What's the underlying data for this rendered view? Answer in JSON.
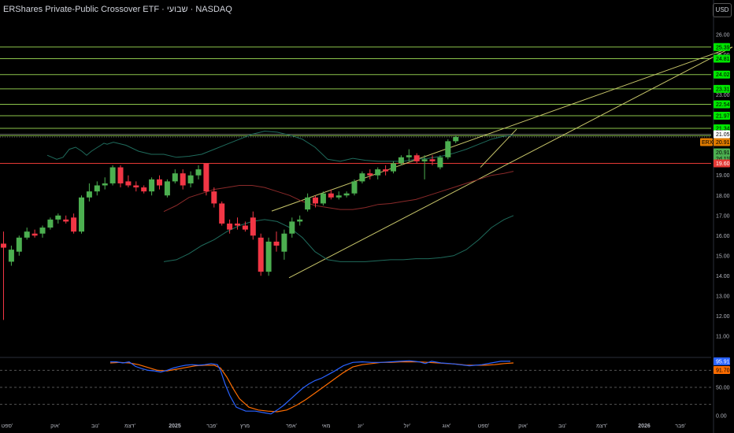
{
  "header": {
    "title": "ERShares Private-Public Crossover ETF · שבועי · NASDAQ",
    "currency_button": "USD"
  },
  "colors": {
    "up": "#4caf50",
    "down": "#f23645",
    "level_line": "#8bc34a",
    "trend_line": "#c8c66a",
    "bb_outer": "#1f6b5c",
    "bb_mid": "#8b2a2a",
    "resistance": "#e53935",
    "stoch_k": "#2962ff",
    "stoch_d": "#ff6d00"
  },
  "chart_data": [
    {
      "type": "candlestick",
      "ylim": [
        10.6,
        26.4
      ],
      "y_ticks": [
        "26.00",
        "25.00",
        "24.00",
        "23.00",
        "22.00",
        "21.00",
        "20.00",
        "19.00",
        "18.00",
        "17.00",
        "16.00",
        "15.00",
        "14.00",
        "13.00",
        "12.00",
        "11.00"
      ],
      "x_ticks": [
        "ספט'",
        "אוק'",
        "נוב'",
        "דצמ'",
        "2025",
        "פבר'",
        "מרץ",
        "אפר'",
        "מאי",
        "יונ'",
        "יול'",
        "אוג'",
        "ספט'",
        "אוק'",
        "נוב'",
        "דצמ'",
        "2026",
        "פבר'"
      ],
      "candles": [
        {
          "o": 15.6,
          "h": 16.2,
          "l": 11.8,
          "c": 15.4
        },
        {
          "o": 14.7,
          "h": 15.5,
          "l": 14.5,
          "c": 15.3
        },
        {
          "o": 15.2,
          "h": 16.0,
          "l": 15.0,
          "c": 15.9
        },
        {
          "o": 15.9,
          "h": 16.4,
          "l": 15.8,
          "c": 16.2
        },
        {
          "o": 16.1,
          "h": 16.3,
          "l": 15.9,
          "c": 16.0
        },
        {
          "o": 16.1,
          "h": 16.5,
          "l": 15.9,
          "c": 16.4
        },
        {
          "o": 16.4,
          "h": 16.9,
          "l": 16.3,
          "c": 16.8
        },
        {
          "o": 16.8,
          "h": 17.1,
          "l": 16.6,
          "c": 17.0
        },
        {
          "o": 16.8,
          "h": 17.0,
          "l": 16.6,
          "c": 16.7
        },
        {
          "o": 16.9,
          "h": 17.1,
          "l": 16.1,
          "c": 16.2
        },
        {
          "o": 16.2,
          "h": 18.0,
          "l": 16.1,
          "c": 17.9
        },
        {
          "o": 17.9,
          "h": 18.6,
          "l": 17.7,
          "c": 18.2
        },
        {
          "o": 18.2,
          "h": 18.7,
          "l": 18.0,
          "c": 18.5
        },
        {
          "o": 18.5,
          "h": 18.9,
          "l": 18.3,
          "c": 18.6
        },
        {
          "o": 18.6,
          "h": 19.5,
          "l": 18.5,
          "c": 19.4
        },
        {
          "o": 19.4,
          "h": 19.5,
          "l": 18.4,
          "c": 18.6
        },
        {
          "o": 18.7,
          "h": 19.0,
          "l": 18.4,
          "c": 18.5
        },
        {
          "o": 18.5,
          "h": 18.7,
          "l": 18.2,
          "c": 18.4
        },
        {
          "o": 18.4,
          "h": 18.5,
          "l": 18.1,
          "c": 18.2
        },
        {
          "o": 18.2,
          "h": 18.9,
          "l": 18.0,
          "c": 18.8
        },
        {
          "o": 18.8,
          "h": 19.0,
          "l": 18.3,
          "c": 18.5
        },
        {
          "o": 18.0,
          "h": 18.8,
          "l": 17.9,
          "c": 18.7
        },
        {
          "o": 18.7,
          "h": 19.3,
          "l": 18.6,
          "c": 19.1
        },
        {
          "o": 19.1,
          "h": 19.3,
          "l": 18.3,
          "c": 18.5
        },
        {
          "o": 18.6,
          "h": 19.2,
          "l": 18.4,
          "c": 19.0
        },
        {
          "o": 19.0,
          "h": 19.5,
          "l": 18.8,
          "c": 19.3
        },
        {
          "o": 19.6,
          "h": 19.6,
          "l": 18.0,
          "c": 18.2
        },
        {
          "o": 18.2,
          "h": 18.4,
          "l": 17.4,
          "c": 17.6
        },
        {
          "o": 17.6,
          "h": 17.7,
          "l": 16.5,
          "c": 16.6
        },
        {
          "o": 16.6,
          "h": 16.8,
          "l": 16.1,
          "c": 16.3
        },
        {
          "o": 16.6,
          "h": 16.9,
          "l": 16.3,
          "c": 16.5
        },
        {
          "o": 16.5,
          "h": 16.7,
          "l": 16.2,
          "c": 16.3
        },
        {
          "o": 16.9,
          "h": 17.2,
          "l": 15.8,
          "c": 16.0
        },
        {
          "o": 15.9,
          "h": 16.1,
          "l": 14.0,
          "c": 14.2
        },
        {
          "o": 14.2,
          "h": 15.9,
          "l": 14.0,
          "c": 15.7
        },
        {
          "o": 15.7,
          "h": 16.2,
          "l": 15.2,
          "c": 15.5
        },
        {
          "o": 15.2,
          "h": 16.3,
          "l": 14.8,
          "c": 16.1
        },
        {
          "o": 16.1,
          "h": 16.9,
          "l": 15.9,
          "c": 16.7
        },
        {
          "o": 16.7,
          "h": 17.0,
          "l": 16.5,
          "c": 16.8
        },
        {
          "o": 17.3,
          "h": 18.1,
          "l": 17.2,
          "c": 17.9
        },
        {
          "o": 17.9,
          "h": 18.0,
          "l": 17.4,
          "c": 17.6
        },
        {
          "o": 17.6,
          "h": 18.2,
          "l": 17.5,
          "c": 18.1
        },
        {
          "o": 18.1,
          "h": 18.3,
          "l": 17.8,
          "c": 17.9
        },
        {
          "o": 17.9,
          "h": 18.2,
          "l": 17.8,
          "c": 18.0
        },
        {
          "o": 18.0,
          "h": 18.2,
          "l": 17.9,
          "c": 18.1
        },
        {
          "o": 18.1,
          "h": 18.8,
          "l": 18.0,
          "c": 18.7
        },
        {
          "o": 18.7,
          "h": 19.2,
          "l": 18.6,
          "c": 19.1
        },
        {
          "o": 19.1,
          "h": 19.3,
          "l": 18.8,
          "c": 19.0
        },
        {
          "o": 19.0,
          "h": 19.4,
          "l": 18.8,
          "c": 19.3
        },
        {
          "o": 19.3,
          "h": 19.5,
          "l": 19.0,
          "c": 19.2
        },
        {
          "o": 19.2,
          "h": 19.7,
          "l": 19.1,
          "c": 19.6
        },
        {
          "o": 19.6,
          "h": 20.0,
          "l": 19.5,
          "c": 19.9
        },
        {
          "o": 19.9,
          "h": 20.3,
          "l": 19.7,
          "c": 20.0
        },
        {
          "o": 20.0,
          "h": 20.1,
          "l": 19.6,
          "c": 19.7
        },
        {
          "o": 19.7,
          "h": 20.0,
          "l": 18.8,
          "c": 19.8
        },
        {
          "o": 19.8,
          "h": 20.0,
          "l": 19.5,
          "c": 19.7
        },
        {
          "o": 19.4,
          "h": 20.0,
          "l": 19.3,
          "c": 19.9
        },
        {
          "o": 19.9,
          "h": 20.8,
          "l": 19.8,
          "c": 20.7
        },
        {
          "o": 20.7,
          "h": 21.0,
          "l": 20.6,
          "c": 20.91
        }
      ],
      "bb_upper": [
        [
          30,
          20.0
        ],
        [
          36,
          19.8
        ],
        [
          40,
          19.9
        ],
        [
          44,
          20.3
        ],
        [
          48,
          20.4
        ],
        [
          52,
          20.2
        ],
        [
          55,
          20.0
        ],
        [
          58,
          20.2
        ],
        [
          62,
          20.4
        ],
        [
          64,
          20.5
        ],
        [
          66,
          20.6
        ],
        [
          68,
          20.55
        ],
        [
          72,
          20.65
        ],
        [
          80,
          20.5
        ],
        [
          88,
          20.2
        ],
        [
          96,
          20.05
        ],
        [
          104,
          20.05
        ],
        [
          112,
          19.9
        ],
        [
          120,
          19.95
        ],
        [
          128,
          20.05
        ],
        [
          136,
          20.3
        ],
        [
          144,
          20.55
        ],
        [
          152,
          20.8
        ],
        [
          160,
          21.05
        ],
        [
          168,
          21.2
        ],
        [
          176,
          21.15
        ],
        [
          184,
          21.0
        ],
        [
          192,
          20.8
        ],
        [
          200,
          20.4
        ],
        [
          208,
          19.8
        ],
        [
          216,
          19.7
        ],
        [
          224,
          19.85
        ],
        [
          232,
          19.75
        ],
        [
          240,
          19.7
        ],
        [
          248,
          19.7
        ],
        [
          256,
          19.7
        ],
        [
          264,
          19.8
        ],
        [
          272,
          19.85
        ],
        [
          280,
          19.95
        ],
        [
          288,
          20.1
        ],
        [
          296,
          20.3
        ],
        [
          304,
          20.55
        ],
        [
          312,
          20.8
        ],
        [
          320,
          20.95
        ],
        [
          326,
          21.0
        ]
      ],
      "bb_middle": [
        [
          104,
          17.2
        ],
        [
          112,
          17.5
        ],
        [
          120,
          17.9
        ],
        [
          128,
          18.1
        ],
        [
          136,
          18.3
        ],
        [
          144,
          18.4
        ],
        [
          152,
          18.5
        ],
        [
          160,
          18.5
        ],
        [
          168,
          18.4
        ],
        [
          176,
          18.2
        ],
        [
          184,
          18.0
        ],
        [
          192,
          17.7
        ],
        [
          200,
          17.5
        ],
        [
          208,
          17.4
        ],
        [
          216,
          17.3
        ],
        [
          224,
          17.3
        ],
        [
          232,
          17.4
        ],
        [
          240,
          17.55
        ],
        [
          248,
          17.6
        ],
        [
          256,
          17.7
        ],
        [
          264,
          17.8
        ],
        [
          272,
          18.0
        ],
        [
          280,
          18.2
        ],
        [
          288,
          18.4
        ],
        [
          296,
          18.6
        ],
        [
          304,
          18.8
        ],
        [
          312,
          19.0
        ],
        [
          320,
          19.1
        ],
        [
          326,
          19.2
        ]
      ],
      "bb_lower": [
        [
          104,
          14.7
        ],
        [
          112,
          14.8
        ],
        [
          120,
          15.1
        ],
        [
          128,
          15.5
        ],
        [
          136,
          15.8
        ],
        [
          144,
          16.2
        ],
        [
          152,
          16.5
        ],
        [
          160,
          16.7
        ],
        [
          168,
          16.8
        ],
        [
          176,
          16.7
        ],
        [
          184,
          16.4
        ],
        [
          192,
          15.9
        ],
        [
          200,
          15.2
        ],
        [
          208,
          14.8
        ],
        [
          216,
          14.7
        ],
        [
          224,
          14.7
        ],
        [
          232,
          14.7
        ],
        [
          240,
          14.75
        ],
        [
          248,
          14.8
        ],
        [
          256,
          14.8
        ],
        [
          264,
          14.85
        ],
        [
          272,
          14.85
        ],
        [
          280,
          14.9
        ],
        [
          288,
          15.0
        ],
        [
          296,
          15.3
        ],
        [
          304,
          15.8
        ],
        [
          312,
          16.4
        ],
        [
          320,
          16.8
        ],
        [
          326,
          17.0
        ]
      ],
      "levels": [
        {
          "value": 25.39,
          "label": "25.39"
        },
        {
          "value": 24.81,
          "label": "24.81"
        },
        {
          "value": 24.02,
          "label": "24.02"
        },
        {
          "value": 23.31,
          "label": "23.31"
        },
        {
          "value": 22.54,
          "label": "22.54"
        },
        {
          "value": 21.97,
          "label": "21.97"
        },
        {
          "value": 21.34,
          "label": "21.34"
        }
      ],
      "grey_levels": [
        {
          "value": 21.05,
          "label": "21.05"
        }
      ],
      "resistance": {
        "value": 19.6,
        "label": "19.60"
      },
      "current_price": {
        "value": 20.91,
        "label": "20.91",
        "ticker": "ERXO",
        "countdown": "2d 11h"
      },
      "trend_lines": [
        {
          "x1": 172.5,
          "y1": 17.22,
          "x2": 465,
          "y2": 25.39
        },
        {
          "x1": 183.5,
          "y1": 13.9,
          "x2": 465,
          "y2": 25.39
        },
        {
          "x1": 305,
          "y1": 19.4,
          "x2": 328,
          "y2": 21.3
        }
      ]
    },
    {
      "type": "line",
      "name": "stochastic",
      "ylim": [
        0,
        100
      ],
      "y_ticks": [
        "50.00",
        "0.00"
      ],
      "k_value": "95.91",
      "d_value": "91.70",
      "bands": [
        80,
        50,
        20
      ],
      "k": [
        [
          70,
          95
        ],
        [
          74,
          95
        ],
        [
          78,
          93
        ],
        [
          82,
          95
        ],
        [
          86,
          87
        ],
        [
          90,
          83
        ],
        [
          94,
          80
        ],
        [
          98,
          79
        ],
        [
          102,
          77
        ],
        [
          106,
          80
        ],
        [
          110,
          84
        ],
        [
          114,
          87
        ],
        [
          118,
          89
        ],
        [
          122,
          90
        ],
        [
          126,
          89
        ],
        [
          130,
          90
        ],
        [
          134,
          92
        ],
        [
          138,
          90
        ],
        [
          140,
          80
        ],
        [
          143,
          55
        ],
        [
          146,
          35
        ],
        [
          150,
          15
        ],
        [
          156,
          8
        ],
        [
          162,
          8
        ],
        [
          168,
          5
        ],
        [
          172,
          3
        ],
        [
          176,
          10
        ],
        [
          180,
          18
        ],
        [
          184,
          28
        ],
        [
          188,
          38
        ],
        [
          192,
          48
        ],
        [
          196,
          56
        ],
        [
          200,
          62
        ],
        [
          204,
          66
        ],
        [
          208,
          72
        ],
        [
          212,
          78
        ],
        [
          218,
          88
        ],
        [
          224,
          94
        ],
        [
          230,
          95
        ],
        [
          236,
          94
        ],
        [
          242,
          94
        ],
        [
          248,
          95
        ],
        [
          254,
          96
        ],
        [
          260,
          97
        ],
        [
          266,
          95
        ],
        [
          270,
          92
        ],
        [
          274,
          96
        ],
        [
          280,
          93
        ],
        [
          286,
          92
        ],
        [
          292,
          90
        ],
        [
          298,
          88
        ],
        [
          302,
          89
        ],
        [
          306,
          90
        ],
        [
          312,
          93
        ],
        [
          318,
          96
        ],
        [
          324,
          96
        ]
      ],
      "d": [
        [
          70,
          93
        ],
        [
          76,
          94
        ],
        [
          82,
          93
        ],
        [
          88,
          90
        ],
        [
          94,
          85
        ],
        [
          100,
          80
        ],
        [
          106,
          79
        ],
        [
          112,
          82
        ],
        [
          118,
          85
        ],
        [
          124,
          88
        ],
        [
          130,
          89
        ],
        [
          136,
          89
        ],
        [
          140,
          84
        ],
        [
          144,
          68
        ],
        [
          148,
          48
        ],
        [
          152,
          30
        ],
        [
          158,
          15
        ],
        [
          164,
          10
        ],
        [
          170,
          8
        ],
        [
          176,
          7
        ],
        [
          182,
          10
        ],
        [
          188,
          18
        ],
        [
          194,
          28
        ],
        [
          200,
          40
        ],
        [
          206,
          52
        ],
        [
          212,
          64
        ],
        [
          218,
          76
        ],
        [
          224,
          86
        ],
        [
          230,
          90
        ],
        [
          236,
          92
        ],
        [
          242,
          94
        ],
        [
          248,
          94
        ],
        [
          254,
          95
        ],
        [
          260,
          95
        ],
        [
          266,
          95
        ],
        [
          272,
          94
        ],
        [
          278,
          93
        ],
        [
          284,
          92
        ],
        [
          290,
          91
        ],
        [
          296,
          89
        ],
        [
          302,
          89
        ],
        [
          308,
          89
        ],
        [
          314,
          90
        ],
        [
          320,
          92
        ],
        [
          326,
          93
        ]
      ]
    }
  ]
}
